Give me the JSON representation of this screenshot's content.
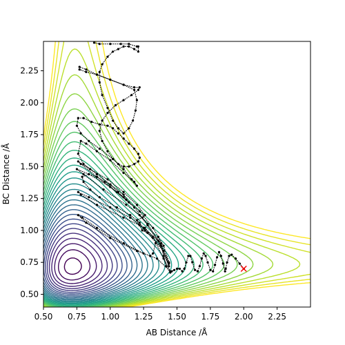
{
  "chart_data": {
    "type": "contour",
    "title": "",
    "xlabel": "AB Distance /Å",
    "ylabel": "BC Distance /Å",
    "xlim": [
      0.5,
      2.5
    ],
    "ylim": [
      0.4,
      2.48
    ],
    "xticks": [
      "0.50",
      "0.75",
      "1.00",
      "1.25",
      "1.50",
      "1.75",
      "2.00",
      "2.25"
    ],
    "yticks": [
      "0.50",
      "0.75",
      "1.00",
      "1.25",
      "1.50",
      "1.75",
      "2.00",
      "2.25"
    ],
    "xtick_values": [
      0.5,
      0.75,
      1.0,
      1.25,
      1.5,
      1.75,
      2.0,
      2.25
    ],
    "ytick_values": [
      0.5,
      0.75,
      1.0,
      1.25,
      1.5,
      1.75,
      2.0,
      2.25
    ],
    "grid": false,
    "colormap": "viridis",
    "contour_level_count": 30,
    "contour_min_color": "#440154",
    "contour_max_color": "#fde725",
    "trajectory_color": "#000000",
    "start_marker": {
      "x": 2.0,
      "y": 0.7,
      "marker": "x",
      "color": "#ff0000"
    },
    "trajectory": [
      [
        2.0,
        0.7
      ],
      [
        1.97,
        0.74
      ],
      [
        1.94,
        0.78
      ],
      [
        1.91,
        0.81
      ],
      [
        1.89,
        0.8
      ],
      [
        1.875,
        0.75
      ],
      [
        1.865,
        0.7
      ],
      [
        1.86,
        0.68
      ],
      [
        1.845,
        0.74
      ],
      [
        1.83,
        0.8
      ],
      [
        1.815,
        0.83
      ],
      [
        1.8,
        0.79
      ],
      [
        1.785,
        0.73
      ],
      [
        1.77,
        0.68
      ],
      [
        1.75,
        0.69
      ],
      [
        1.73,
        0.75
      ],
      [
        1.715,
        0.8
      ],
      [
        1.7,
        0.82
      ],
      [
        1.685,
        0.78
      ],
      [
        1.67,
        0.72
      ],
      [
        1.655,
        0.68
      ],
      [
        1.635,
        0.69
      ],
      [
        1.615,
        0.75
      ],
      [
        1.6,
        0.8
      ],
      [
        1.585,
        0.8
      ],
      [
        1.57,
        0.75
      ],
      [
        1.555,
        0.7
      ],
      [
        1.54,
        0.68
      ],
      [
        1.52,
        0.7
      ],
      [
        1.5,
        0.7
      ],
      [
        1.48,
        0.69
      ],
      [
        1.46,
        0.68
      ],
      [
        1.45,
        0.67
      ],
      [
        1.42,
        0.72
      ],
      [
        1.4,
        0.8
      ],
      [
        1.38,
        0.9
      ],
      [
        1.36,
        0.95
      ],
      [
        1.34,
        0.9
      ],
      [
        1.32,
        0.82
      ],
      [
        1.3,
        0.8
      ],
      [
        1.25,
        0.82
      ],
      [
        1.1,
        0.9
      ],
      [
        0.9,
        1.02
      ],
      [
        0.79,
        1.1
      ],
      [
        0.76,
        1.12
      ],
      [
        0.82,
        1.06
      ],
      [
        1.0,
        0.94
      ],
      [
        1.2,
        0.84
      ],
      [
        1.35,
        0.78
      ],
      [
        1.45,
        0.68
      ],
      [
        1.4,
        0.78
      ],
      [
        1.32,
        0.95
      ],
      [
        1.26,
        1.02
      ],
      [
        1.22,
        1.04
      ],
      [
        1.1,
        1.1
      ],
      [
        0.9,
        1.2
      ],
      [
        0.78,
        1.28
      ],
      [
        0.76,
        1.3
      ],
      [
        0.84,
        1.26
      ],
      [
        1.0,
        1.18
      ],
      [
        1.15,
        1.1
      ],
      [
        1.25,
        1.02
      ],
      [
        1.38,
        0.9
      ],
      [
        1.44,
        0.72
      ],
      [
        1.36,
        0.92
      ],
      [
        1.28,
        1.05
      ],
      [
        1.22,
        1.12
      ],
      [
        1.12,
        1.2
      ],
      [
        0.95,
        1.32
      ],
      [
        0.8,
        1.44
      ],
      [
        0.75,
        1.48
      ],
      [
        0.84,
        1.44
      ],
      [
        1.0,
        1.34
      ],
      [
        1.12,
        1.24
      ],
      [
        1.22,
        1.15
      ],
      [
        1.32,
        1.02
      ],
      [
        1.4,
        0.88
      ],
      [
        1.44,
        0.75
      ],
      [
        1.38,
        0.88
      ],
      [
        1.28,
        1.04
      ],
      [
        1.18,
        1.18
      ],
      [
        1.05,
        1.3
      ],
      [
        0.9,
        1.42
      ],
      [
        0.78,
        1.52
      ],
      [
        0.76,
        1.54
      ],
      [
        0.85,
        1.48
      ],
      [
        0.98,
        1.4
      ],
      [
        1.1,
        1.3
      ],
      [
        1.2,
        1.2
      ],
      [
        1.26,
        1.12
      ],
      [
        1.24,
        1.1
      ],
      [
        1.2,
        1.08
      ],
      [
        1.24,
        1.0
      ],
      [
        1.28,
        0.98
      ],
      [
        1.4,
        0.84
      ],
      [
        1.44,
        0.74
      ],
      [
        1.4,
        0.84
      ],
      [
        1.32,
        0.94
      ],
      [
        1.26,
        1.0
      ],
      [
        1.22,
        1.06
      ],
      [
        1.15,
        1.12
      ],
      [
        1.05,
        1.18
      ],
      [
        0.92,
        1.26
      ],
      [
        0.85,
        1.32
      ],
      [
        0.8,
        1.38
      ],
      [
        0.79,
        1.42
      ],
      [
        0.84,
        1.44
      ],
      [
        0.9,
        1.42
      ],
      [
        0.96,
        1.38
      ],
      [
        1.0,
        1.36
      ],
      [
        1.06,
        1.3
      ],
      [
        1.1,
        1.26
      ],
      [
        1.14,
        1.22
      ],
      [
        1.1,
        1.28
      ],
      [
        1.0,
        1.36
      ],
      [
        0.9,
        1.44
      ],
      [
        0.8,
        1.52
      ],
      [
        0.76,
        1.6
      ],
      [
        0.78,
        1.7
      ],
      [
        0.82,
        1.68
      ],
      [
        0.9,
        1.62
      ],
      [
        1.0,
        1.55
      ],
      [
        1.1,
        1.45
      ],
      [
        1.18,
        1.38
      ],
      [
        1.2,
        1.35
      ],
      [
        1.16,
        1.4
      ],
      [
        1.1,
        1.48
      ],
      [
        1.02,
        1.56
      ],
      [
        0.92,
        1.64
      ],
      [
        0.84,
        1.7
      ],
      [
        0.78,
        1.76
      ],
      [
        0.75,
        1.82
      ],
      [
        0.76,
        1.88
      ],
      [
        0.8,
        1.88
      ],
      [
        0.86,
        1.85
      ],
      [
        0.92,
        1.83
      ],
      [
        0.98,
        1.82
      ],
      [
        1.02,
        1.8
      ],
      [
        1.06,
        1.76
      ],
      [
        1.1,
        1.72
      ],
      [
        1.14,
        1.68
      ],
      [
        1.18,
        1.64
      ],
      [
        1.21,
        1.6
      ],
      [
        1.22,
        1.57
      ],
      [
        1.21,
        1.54
      ],
      [
        1.18,
        1.52
      ],
      [
        1.14,
        1.5
      ],
      [
        1.1,
        1.5
      ],
      [
        1.06,
        1.52
      ],
      [
        1.02,
        1.56
      ],
      [
        0.98,
        1.62
      ],
      [
        0.94,
        1.7
      ],
      [
        0.92,
        1.78
      ],
      [
        0.94,
        1.86
      ],
      [
        0.98,
        1.92
      ],
      [
        1.04,
        1.98
      ],
      [
        1.1,
        2.02
      ],
      [
        1.16,
        2.06
      ],
      [
        1.21,
        2.1
      ],
      [
        1.22,
        2.12
      ],
      [
        1.18,
        2.12
      ],
      [
        1.1,
        2.14
      ],
      [
        1.0,
        2.18
      ],
      [
        0.9,
        2.22
      ],
      [
        0.82,
        2.26
      ],
      [
        0.77,
        2.28
      ],
      [
        0.77,
        2.26
      ],
      [
        0.82,
        2.24
      ],
      [
        0.9,
        2.22
      ],
      [
        1.0,
        2.18
      ],
      [
        1.1,
        2.14
      ],
      [
        1.18,
        2.1
      ],
      [
        1.2,
        2.02
      ],
      [
        1.19,
        1.94
      ],
      [
        1.17,
        1.86
      ],
      [
        1.14,
        1.8
      ],
      [
        1.1,
        1.76
      ],
      [
        1.06,
        1.8
      ],
      [
        1.02,
        1.86
      ],
      [
        0.98,
        1.96
      ],
      [
        0.94,
        2.06
      ],
      [
        0.92,
        2.16
      ],
      [
        0.92,
        2.24
      ],
      [
        0.94,
        2.3
      ],
      [
        0.98,
        2.36
      ],
      [
        1.02,
        2.4
      ],
      [
        1.06,
        2.42
      ],
      [
        1.1,
        2.44
      ],
      [
        1.14,
        2.44
      ],
      [
        1.18,
        2.42
      ],
      [
        1.21,
        2.4
      ],
      [
        1.21,
        2.44
      ],
      [
        1.2,
        2.44
      ],
      [
        1.14,
        2.46
      ],
      [
        1.08,
        2.46
      ],
      [
        1.0,
        2.46
      ],
      [
        0.92,
        2.46
      ],
      [
        0.88,
        2.47
      ]
    ]
  }
}
